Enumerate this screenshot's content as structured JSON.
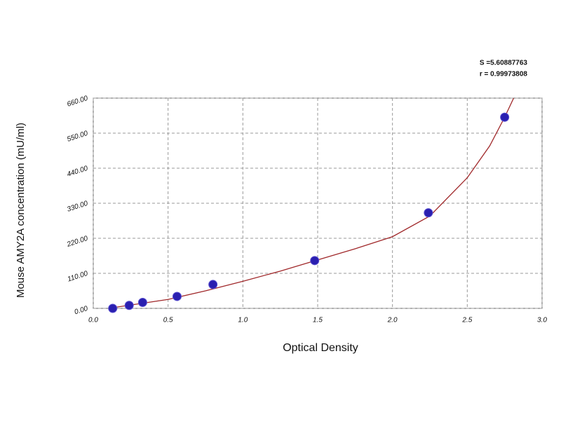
{
  "chart_data": {
    "type": "scatter",
    "xlabel": "Optical Density",
    "ylabel": "Mouse AMY2A concentration (mU/ml)",
    "annotations": [
      "S =5.60887763",
      "r = 0.99973808"
    ],
    "xlim": [
      0,
      3
    ],
    "ylim": [
      0,
      660
    ],
    "xticks": [
      {
        "value": 0,
        "label": "0.0"
      },
      {
        "value": 0.5,
        "label": "0.5"
      },
      {
        "value": 1,
        "label": "1.0"
      },
      {
        "value": 1.5,
        "label": "1.5"
      },
      {
        "value": 2,
        "label": "2.0"
      },
      {
        "value": 2.5,
        "label": "2.5"
      },
      {
        "value": 3,
        "label": "3.0"
      }
    ],
    "yticks": [
      {
        "value": 0,
        "label": "0.00"
      },
      {
        "value": 110,
        "label": "110.00"
      },
      {
        "value": 220,
        "label": "220.00"
      },
      {
        "value": 330,
        "label": "330.00"
      },
      {
        "value": 440,
        "label": "440.00"
      },
      {
        "value": 550,
        "label": "550.00"
      },
      {
        "value": 660,
        "label": "660.00"
      }
    ],
    "grid": true,
    "points": {
      "color": "#2a1fb0",
      "x": [
        0.13,
        0.24,
        0.33,
        0.56,
        0.8,
        1.48,
        2.24,
        2.75
      ],
      "y": [
        0,
        9.38,
        18.75,
        37.5,
        75,
        150,
        300,
        600
      ]
    },
    "fit": {
      "color": "#a0282a",
      "x": [
        0.1,
        0.3,
        0.5,
        0.75,
        1.0,
        1.25,
        1.5,
        1.75,
        2.0,
        2.25,
        2.5,
        2.65,
        2.75,
        2.81
      ],
      "y": [
        0,
        14,
        28,
        55,
        85,
        117,
        152,
        187,
        225,
        290,
        410,
        510,
        600,
        660
      ]
    }
  }
}
